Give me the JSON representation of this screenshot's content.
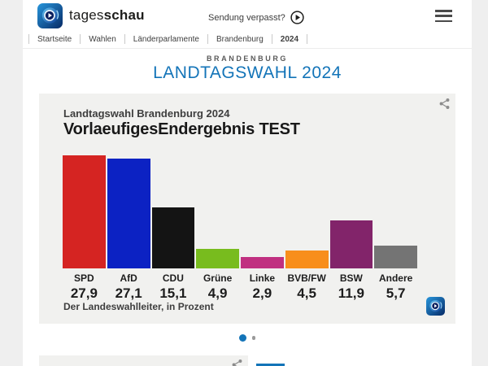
{
  "header": {
    "brand_regular": "tages",
    "brand_bold": "schau",
    "broadcast_link": "Sendung verpasst?"
  },
  "breadcrumb": [
    "Startseite",
    "Wahlen",
    "Länderparlamente",
    "Brandenburg",
    "2024"
  ],
  "page": {
    "kicker": "BRANDENBURG",
    "title": "LANDTAGSWAHL 2024"
  },
  "chart_card": {
    "supertitle": "Landtagswahl Brandenburg 2024",
    "title": "VorlaeufigesEndergebnis TEST",
    "footnote": "Der Landeswahlleiter, in Prozent"
  },
  "chart_data": {
    "type": "bar",
    "title": "VorlaeufigesEndergebnis TEST",
    "subtitle": "Landtagswahl Brandenburg 2024",
    "categories": [
      "SPD",
      "AfD",
      "CDU",
      "Grüne",
      "Linke",
      "BVB/FW",
      "BSW",
      "Andere"
    ],
    "values": [
      27.9,
      27.1,
      15.1,
      4.9,
      2.9,
      4.5,
      11.9,
      5.7
    ],
    "value_labels": [
      "27,9",
      "27,1",
      "15,1",
      "4,9",
      "2,9",
      "4,5",
      "11,9",
      "5,7"
    ],
    "bar_colors": [
      "#d52422",
      "#0c22c3",
      "#141414",
      "#78bc1e",
      "#c03080",
      "#f88e1b",
      "#82246a",
      "#747474"
    ],
    "unit": "in Prozent",
    "source": "Der Landeswahlleiter",
    "ylabel": "",
    "xlabel": "",
    "ylim": [
      0,
      29
    ],
    "grid": false,
    "legend": "none"
  },
  "carousel": {
    "total_dots": 2,
    "active_index": 0
  },
  "theme": {
    "accent_blue": "#1374b8",
    "card_bg": "#f1f1ef",
    "page_bg": "#efefef",
    "text_dark": "#1d1d1d"
  }
}
